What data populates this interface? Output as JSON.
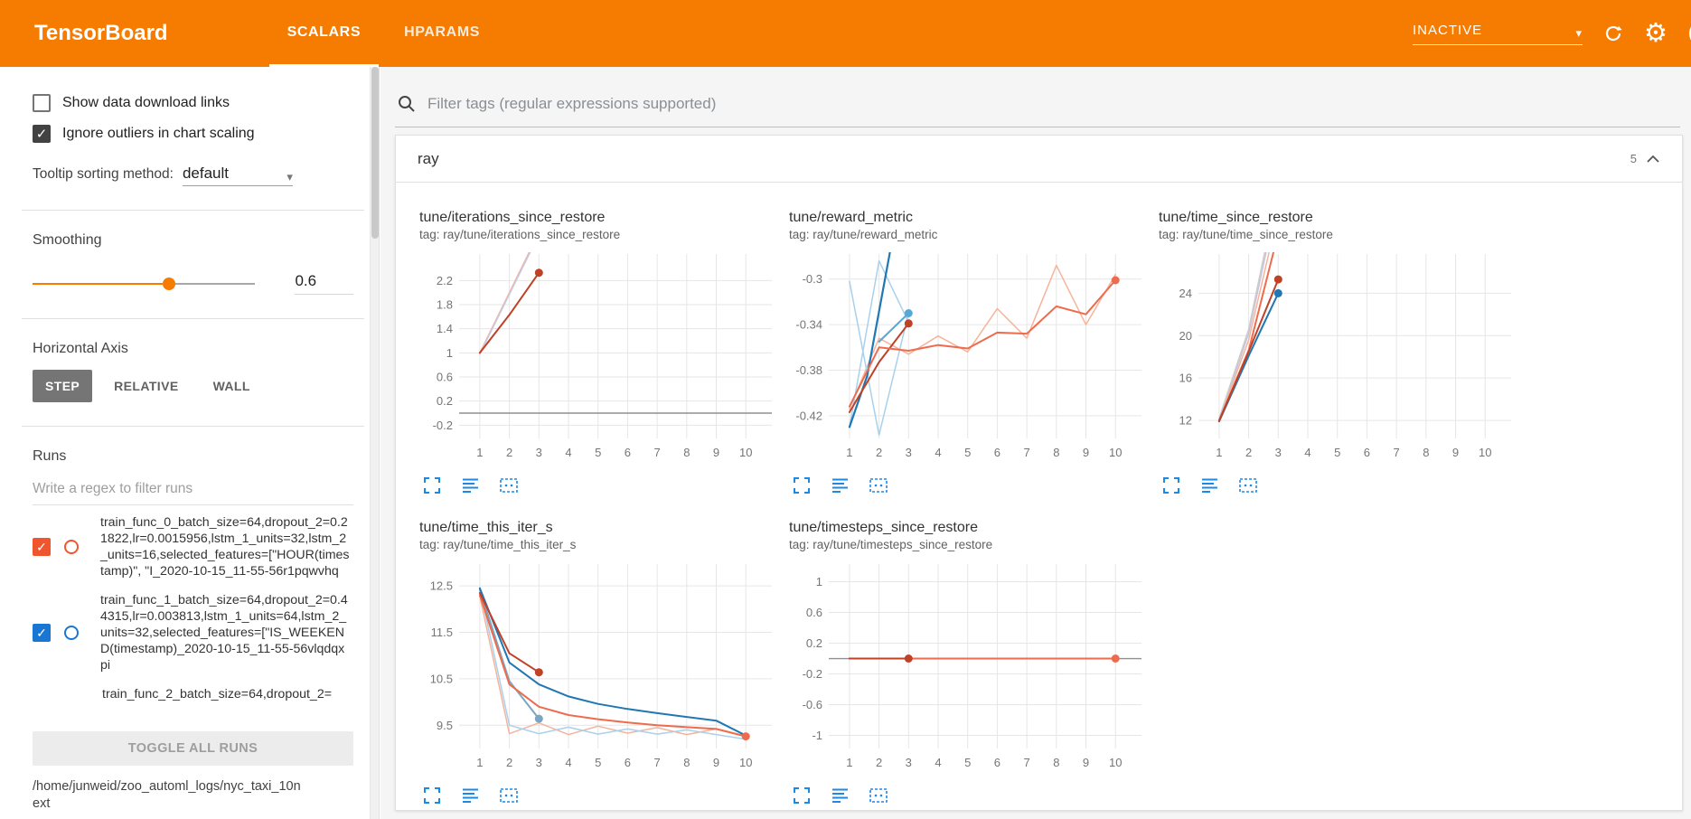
{
  "header": {
    "title": "TensorBoard",
    "tabs": [
      {
        "label": "SCALARS",
        "active": true
      },
      {
        "label": "HPARAMS",
        "active": false
      }
    ],
    "status_select": "INACTIVE"
  },
  "icons": {
    "check": "✓",
    "caret_down": "▾",
    "gear": "⚙",
    "help": "?"
  },
  "colors": {
    "header_orange": "#f57c00",
    "toolbar_icon_blue": "#1e88e5",
    "run_red": "#bf4126",
    "run_blue": "#1f77b4",
    "run_orange": "#ee6c4d"
  },
  "sidebar": {
    "checkboxes": [
      {
        "label": "Show data download links",
        "checked": false
      },
      {
        "label": "Ignore outliers in chart scaling",
        "checked": true
      }
    ],
    "tooltip_sorting": {
      "label": "Tooltip sorting method:",
      "value": "default"
    },
    "smoothing": {
      "label": "Smoothing",
      "value": "0.6",
      "percent": 60
    },
    "horizontal_axis": {
      "label": "Horizontal Axis",
      "options": [
        "STEP",
        "RELATIVE",
        "WALL"
      ],
      "selected": "STEP"
    },
    "runs": {
      "label": "Runs",
      "filter_placeholder": "Write a regex to filter runs",
      "items": [
        {
          "name": "train_func_0_batch_size=64,dropout_2=0.21822,lr=0.0015956,lstm_1_units=32,lstm_2_units=16,selected_features=[\"HOUR(timestamp)\", \"I_2020-10-15_11-55-56r1pqwvhq",
          "checked": true,
          "color": "#ef562d"
        },
        {
          "name": "train_func_1_batch_size=64,dropout_2=0.44315,lr=0.003813,lstm_1_units=64,lstm_2_units=32,selected_features=[\"IS_WEEKEND(timestamp)_2020-10-15_11-55-56vlqdqxpi",
          "checked": true,
          "color": "#1976d2"
        },
        {
          "name": "train_func_2_batch_size=64,dropout_2=",
          "partial": true
        }
      ],
      "toggle_all_label": "TOGGLE ALL RUNS",
      "log_path": "/home/junweid/zoo_automl_logs/nyc_taxi_10next"
    }
  },
  "main": {
    "filter_placeholder": "Filter tags (regular expressions supported)",
    "section": {
      "title": "ray",
      "count": "5"
    }
  },
  "chart_data": [
    {
      "type": "line",
      "title": "tune/iterations_since_restore",
      "tag": "tag: ray/tune/iterations_since_restore",
      "x_ticks": [
        1,
        2,
        3,
        4,
        5,
        6,
        7,
        8,
        9,
        10
      ],
      "y_ticks": [
        -0.2,
        0.2,
        0.6,
        1,
        1.4,
        1.8,
        2.2
      ],
      "x_range": [
        0.3,
        10.88
      ],
      "y_range": [
        -0.42,
        2.64
      ],
      "zero_line": true,
      "series": [
        {
          "name": "train_func_2_raw",
          "color": "#f6b39b",
          "width": 1.5,
          "points": [
            [
              1,
              1
            ],
            [
              2,
              2
            ],
            [
              3,
              3
            ]
          ]
        },
        {
          "name": "train_func_1_raw",
          "color": "#c3cde4",
          "width": 1.5,
          "points": [
            [
              1,
              0.98
            ],
            [
              2,
              1.97
            ],
            [
              3,
              2.96
            ]
          ]
        },
        {
          "name": "train_func_0_smoothed",
          "color": "#bf4126",
          "width": 2,
          "dot": true,
          "points": [
            [
              1,
              1
            ],
            [
              2,
              1.63
            ],
            [
              3,
              2.33
            ]
          ]
        }
      ]
    },
    {
      "type": "line",
      "title": "tune/reward_metric",
      "tag": "tag: ray/tune/reward_metric",
      "x_ticks": [
        1,
        2,
        3,
        4,
        5,
        6,
        7,
        8,
        9,
        10
      ],
      "y_ticks": [
        -0.42,
        -0.38,
        -0.34,
        -0.3
      ],
      "x_range": [
        0.3,
        10.88
      ],
      "y_range": [
        -0.44,
        -0.278
      ],
      "zero_line": false,
      "series": [
        {
          "name": "train_func_2_raw",
          "color": "#f6b39b",
          "width": 1.5,
          "points": [
            [
              1,
              -0.414
            ],
            [
              2,
              -0.352
            ],
            [
              3,
              -0.366
            ],
            [
              4,
              -0.35
            ],
            [
              5,
              -0.364
            ],
            [
              6,
              -0.326
            ],
            [
              7,
              -0.352
            ],
            [
              8,
              -0.288
            ],
            [
              9,
              -0.34
            ],
            [
              10,
              -0.296
            ]
          ]
        },
        {
          "name": "train_func_1_raw_a",
          "color": "#a8d1ec",
          "width": 1.5,
          "points": [
            [
              1,
              -0.43
            ],
            [
              2,
              -0.284
            ],
            [
              3,
              -0.338
            ]
          ]
        },
        {
          "name": "train_func_1_raw_b",
          "color": "#a8d1ec",
          "width": 1.5,
          "points": [
            [
              1,
              -0.302
            ],
            [
              2,
              -0.437
            ],
            [
              3,
              -0.33
            ]
          ]
        },
        {
          "name": "train_func_1_smoothed",
          "color": "#1f77b4",
          "width": 2.2,
          "points": [
            [
              1,
              -0.43
            ],
            [
              1.6,
              -0.385
            ],
            [
              2.4,
              -0.272
            ]
          ]
        },
        {
          "name": "train_func_1_marker",
          "color": "#56a8d8",
          "width": 2,
          "dot": true,
          "points": [
            [
              2,
              -0.355
            ],
            [
              3,
              -0.33
            ]
          ]
        },
        {
          "name": "train_func_0_smoothed",
          "color": "#bf4126",
          "width": 2,
          "dot": true,
          "points": [
            [
              1,
              -0.417
            ],
            [
              2,
              -0.373
            ],
            [
              3,
              -0.339
            ]
          ]
        },
        {
          "name": "train_func_2_smoothed",
          "color": "#ee6c4d",
          "width": 2,
          "dot": true,
          "points": [
            [
              1,
              -0.412
            ],
            [
              2,
              -0.36
            ],
            [
              3,
              -0.363
            ],
            [
              4,
              -0.358
            ],
            [
              5,
              -0.361
            ],
            [
              6,
              -0.347
            ],
            [
              7,
              -0.348
            ],
            [
              8,
              -0.324
            ],
            [
              9,
              -0.331
            ],
            [
              10,
              -0.301
            ]
          ]
        }
      ]
    },
    {
      "type": "line",
      "title": "tune/time_since_restore",
      "tag": "tag: ray/tune/time_since_restore",
      "x_ticks": [
        1,
        2,
        3,
        4,
        5,
        6,
        7,
        8,
        9,
        10
      ],
      "y_ticks": [
        12,
        16,
        20,
        24
      ],
      "x_range": [
        0.3,
        10.88
      ],
      "y_range": [
        10.3,
        27.7
      ],
      "zero_line": false,
      "series": [
        {
          "name": "raw_a",
          "color": "#c9c2dc",
          "width": 1.5,
          "points": [
            [
              1,
              12.1
            ],
            [
              2,
              20.2
            ],
            [
              2.6,
              28
            ]
          ]
        },
        {
          "name": "raw_b",
          "color": "#f6b39b",
          "width": 1.5,
          "points": [
            [
              1,
              12
            ],
            [
              2,
              19.6
            ],
            [
              2.7,
              28
            ]
          ]
        },
        {
          "name": "raw_c",
          "color": "#cccccc",
          "width": 1.5,
          "points": [
            [
              1,
              12.2
            ],
            [
              2,
              20.6
            ],
            [
              2.55,
              28
            ]
          ]
        },
        {
          "name": "train_func_2_smoothed",
          "color": "#ee6c4d",
          "width": 2,
          "points": [
            [
              1,
              12
            ],
            [
              2,
              18.6
            ],
            [
              2.85,
              28
            ]
          ]
        },
        {
          "name": "train_func_1_smoothed",
          "color": "#1f77b4",
          "width": 2,
          "dot": true,
          "points": [
            [
              1,
              11.9
            ],
            [
              2,
              18.1
            ],
            [
              3,
              24
            ]
          ]
        },
        {
          "name": "train_func_0_smoothed",
          "color": "#bf4126",
          "width": 2,
          "dot": true,
          "points": [
            [
              1,
              11.95
            ],
            [
              2,
              18.5
            ],
            [
              3,
              25.3
            ]
          ]
        }
      ]
    },
    {
      "type": "line",
      "title": "tune/time_this_iter_s",
      "tag": "tag: ray/tune/time_this_iter_s",
      "x_ticks": [
        1,
        2,
        3,
        4,
        5,
        6,
        7,
        8,
        9,
        10
      ],
      "y_ticks": [
        9.5,
        10.5,
        11.5,
        12.5
      ],
      "x_range": [
        0.3,
        10.88
      ],
      "y_range": [
        9.0,
        12.97
      ],
      "zero_line": false,
      "series": [
        {
          "name": "train_func_2_raw",
          "color": "#f6b39b",
          "width": 1.5,
          "points": [
            [
              1,
              12.28
            ],
            [
              2,
              9.32
            ],
            [
              3,
              9.55
            ],
            [
              4,
              9.3
            ],
            [
              5,
              9.48
            ],
            [
              6,
              9.33
            ],
            [
              7,
              9.45
            ],
            [
              8,
              9.3
            ],
            [
              9,
              9.42
            ],
            [
              10,
              9.27
            ]
          ]
        },
        {
          "name": "train_func_1_raw",
          "color": "#a8d1ec",
          "width": 1.5,
          "points": [
            [
              1,
              12.45
            ],
            [
              2,
              9.5
            ],
            [
              3,
              9.32
            ],
            [
              4,
              9.46
            ],
            [
              5,
              9.31
            ],
            [
              6,
              9.42
            ],
            [
              7,
              9.31
            ],
            [
              8,
              9.4
            ],
            [
              9,
              9.3
            ],
            [
              10,
              9.2
            ]
          ]
        },
        {
          "name": "marker_series",
          "color": "#7aa6c2",
          "width": 2,
          "dot": true,
          "points": [
            [
              1,
              12.42
            ],
            [
              2,
              10.45
            ],
            [
              3,
              9.64
            ]
          ]
        },
        {
          "name": "train_func_1_smoothed",
          "color": "#1f77b4",
          "width": 2,
          "points": [
            [
              1,
              12.45
            ],
            [
              2,
              10.85
            ],
            [
              3,
              10.38
            ],
            [
              4,
              10.12
            ],
            [
              5,
              9.96
            ],
            [
              6,
              9.85
            ],
            [
              7,
              9.76
            ],
            [
              8,
              9.68
            ],
            [
              9,
              9.6
            ],
            [
              10,
              9.28
            ]
          ]
        },
        {
          "name": "train_func_2_smoothed",
          "color": "#ee6c4d",
          "width": 2,
          "dot": true,
          "points": [
            [
              1,
              12.3
            ],
            [
              2,
              10.38
            ],
            [
              3,
              9.9
            ],
            [
              4,
              9.72
            ],
            [
              5,
              9.63
            ],
            [
              6,
              9.56
            ],
            [
              7,
              9.5
            ],
            [
              8,
              9.46
            ],
            [
              9,
              9.42
            ],
            [
              10,
              9.26
            ]
          ]
        },
        {
          "name": "train_func_0_smoothed",
          "color": "#bf4126",
          "width": 2,
          "dot": true,
          "points": [
            [
              1,
              12.35
            ],
            [
              2,
              11.05
            ],
            [
              3,
              10.64
            ]
          ]
        }
      ]
    },
    {
      "type": "line",
      "title": "tune/timesteps_since_restore",
      "tag": "tag: ray/tune/timesteps_since_restore",
      "x_ticks": [
        1,
        2,
        3,
        4,
        5,
        6,
        7,
        8,
        9,
        10
      ],
      "y_ticks": [
        -1,
        -0.6,
        -0.2,
        0.2,
        0.6,
        1
      ],
      "x_range": [
        0.3,
        10.88
      ],
      "y_range": [
        -1.17,
        1.23
      ],
      "zero_line": true,
      "series": [
        {
          "name": "train_func_1_smoothed",
          "color": "#1f77b4",
          "width": 2,
          "points": [
            [
              1,
              0
            ],
            [
              3,
              0
            ]
          ]
        },
        {
          "name": "train_func_2_smoothed",
          "color": "#ee6c4d",
          "width": 2,
          "dot": true,
          "points": [
            [
              1,
              0
            ],
            [
              10,
              0
            ]
          ]
        },
        {
          "name": "train_func_0_smoothed",
          "color": "#bf4126",
          "width": 2,
          "dot": true,
          "points": [
            [
              1,
              0
            ],
            [
              3,
              0
            ]
          ]
        }
      ]
    }
  ]
}
